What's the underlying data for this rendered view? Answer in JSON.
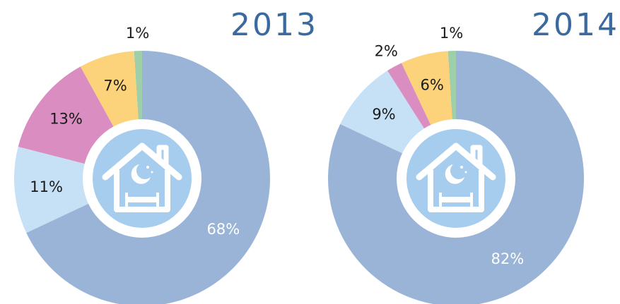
{
  "chart_data": [
    {
      "type": "pie",
      "title": "2013",
      "categories": [
        null,
        null,
        null,
        null,
        null
      ],
      "values": [
        68,
        11,
        13,
        7,
        1
      ],
      "value_labels": [
        "68%",
        "11%",
        "13%",
        "7%",
        "1%"
      ],
      "colors": [
        "#9ab4d8",
        "#c6e0f6",
        "#da8dc0",
        "#fcd37a",
        "#9fcfa8"
      ]
    },
    {
      "type": "pie",
      "title": "2014",
      "categories": [
        null,
        null,
        null,
        null,
        null
      ],
      "values": [
        82,
        9,
        2,
        6,
        1
      ],
      "value_labels": [
        "82%",
        "9%",
        "2%",
        "6%",
        "1%"
      ],
      "colors": [
        "#9ab4d8",
        "#c6e0f6",
        "#da8dc0",
        "#fcd37a",
        "#9fcfa8"
      ]
    }
  ]
}
